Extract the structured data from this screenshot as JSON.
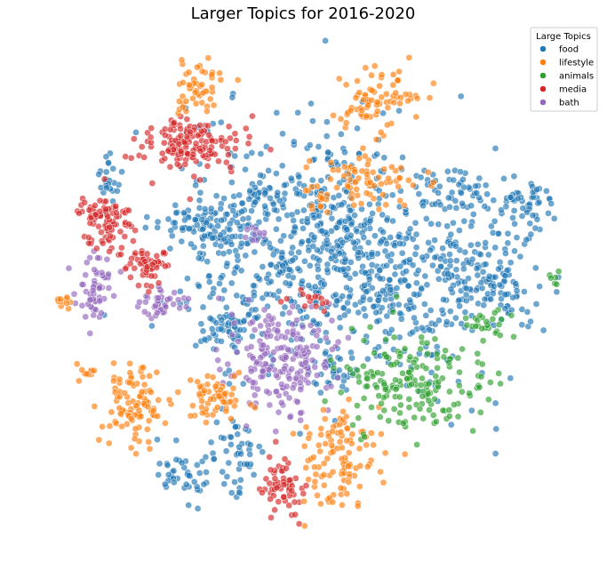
{
  "chart_data": {
    "type": "scatter",
    "title": "Larger Topics for 2016-2020",
    "xlabel": "",
    "ylabel": "",
    "axes_visible": false,
    "grid": false,
    "legend": {
      "title": "Large Topics",
      "placement": "top-right",
      "entries": [
        "food",
        "lifestyle",
        "animals",
        "media",
        "bath"
      ]
    },
    "colors": {
      "food": "#1f77b4",
      "lifestyle": "#ff7f0e",
      "animals": "#2ca02c",
      "media": "#d62728",
      "bath": "#9467bd"
    },
    "series": [
      {
        "name": "food",
        "clusters": [
          {
            "cx": 0.0,
            "cy": 0.15,
            "sx": 0.23,
            "sy": 0.22,
            "n": 600
          },
          {
            "cx": 0.45,
            "cy": 0.02,
            "sx": 0.17,
            "sy": 0.22,
            "n": 280
          },
          {
            "cx": 0.82,
            "cy": 0.28,
            "sx": 0.07,
            "sy": 0.06,
            "n": 60
          },
          {
            "cx": 0.7,
            "cy": 0.06,
            "sx": 0.06,
            "sy": 0.05,
            "n": 40
          },
          {
            "cx": -0.37,
            "cy": 0.22,
            "sx": 0.09,
            "sy": 0.05,
            "n": 90
          },
          {
            "cx": -0.28,
            "cy": -0.18,
            "sx": 0.06,
            "sy": 0.05,
            "n": 50
          },
          {
            "cx": -0.73,
            "cy": 0.42,
            "sx": 0.02,
            "sy": 0.06,
            "n": 25
          },
          {
            "cx": -0.26,
            "cy": -0.66,
            "sx": 0.05,
            "sy": 0.08,
            "n": 50
          },
          {
            "cx": -0.44,
            "cy": -0.73,
            "sx": 0.06,
            "sy": 0.06,
            "n": 40
          },
          {
            "cx": 0.72,
            "cy": -0.05,
            "sx": 0.08,
            "sy": 0.06,
            "n": 50
          },
          {
            "cx": 0.12,
            "cy": -0.35,
            "sx": 0.04,
            "sy": 0.04,
            "n": 30
          },
          {
            "cx": 0.6,
            "cy": 0.36,
            "sx": 0.04,
            "sy": 0.04,
            "n": 25
          },
          {
            "cx": -0.15,
            "cy": 0.34,
            "sx": 0.04,
            "sy": 0.04,
            "n": 25
          }
        ]
      },
      {
        "name": "lifestyle",
        "clusters": [
          {
            "cx": -0.4,
            "cy": 0.75,
            "sx": 0.05,
            "sy": 0.06,
            "n": 50
          },
          {
            "cx": 0.29,
            "cy": 0.7,
            "sx": 0.08,
            "sy": 0.06,
            "n": 80
          },
          {
            "cx": 0.25,
            "cy": 0.4,
            "sx": 0.1,
            "sy": 0.05,
            "n": 70
          },
          {
            "cx": -0.63,
            "cy": -0.48,
            "sx": 0.06,
            "sy": 0.08,
            "n": 100
          },
          {
            "cx": -0.32,
            "cy": -0.45,
            "sx": 0.06,
            "sy": 0.05,
            "n": 60
          },
          {
            "cx": 0.15,
            "cy": -0.68,
            "sx": 0.08,
            "sy": 0.1,
            "n": 110
          },
          {
            "cx": -0.82,
            "cy": -0.35,
            "sx": 0.02,
            "sy": 0.02,
            "n": 10
          },
          {
            "cx": -0.89,
            "cy": -0.08,
            "sx": 0.02,
            "sy": 0.02,
            "n": 10
          },
          {
            "cx": 0.05,
            "cy": 0.32,
            "sx": 0.03,
            "sy": 0.03,
            "n": 15
          }
        ]
      },
      {
        "name": "animals",
        "clusters": [
          {
            "cx": 0.4,
            "cy": -0.38,
            "sx": 0.13,
            "sy": 0.1,
            "n": 180
          },
          {
            "cx": 0.7,
            "cy": -0.15,
            "sx": 0.04,
            "sy": 0.04,
            "n": 25
          },
          {
            "cx": 0.95,
            "cy": 0.02,
            "sx": 0.01,
            "sy": 0.02,
            "n": 6
          }
        ]
      },
      {
        "name": "media",
        "clusters": [
          {
            "cx": -0.43,
            "cy": 0.53,
            "sx": 0.1,
            "sy": 0.05,
            "n": 150
          },
          {
            "cx": -0.74,
            "cy": 0.25,
            "sx": 0.05,
            "sy": 0.05,
            "n": 90
          },
          {
            "cx": -0.58,
            "cy": 0.06,
            "sx": 0.04,
            "sy": 0.04,
            "n": 60
          },
          {
            "cx": -0.07,
            "cy": -0.79,
            "sx": 0.04,
            "sy": 0.06,
            "n": 60
          },
          {
            "cx": 0.02,
            "cy": -0.06,
            "sx": 0.05,
            "sy": 0.03,
            "n": 15
          }
        ]
      },
      {
        "name": "bath",
        "clusters": [
          {
            "cx": -0.08,
            "cy": -0.3,
            "sx": 0.1,
            "sy": 0.09,
            "n": 200
          },
          {
            "cx": -0.78,
            "cy": -0.02,
            "sx": 0.04,
            "sy": 0.07,
            "n": 60
          },
          {
            "cx": -0.52,
            "cy": -0.08,
            "sx": 0.05,
            "sy": 0.03,
            "n": 40
          },
          {
            "cx": -0.17,
            "cy": 0.18,
            "sx": 0.03,
            "sy": 0.03,
            "n": 10
          }
        ]
      }
    ]
  }
}
